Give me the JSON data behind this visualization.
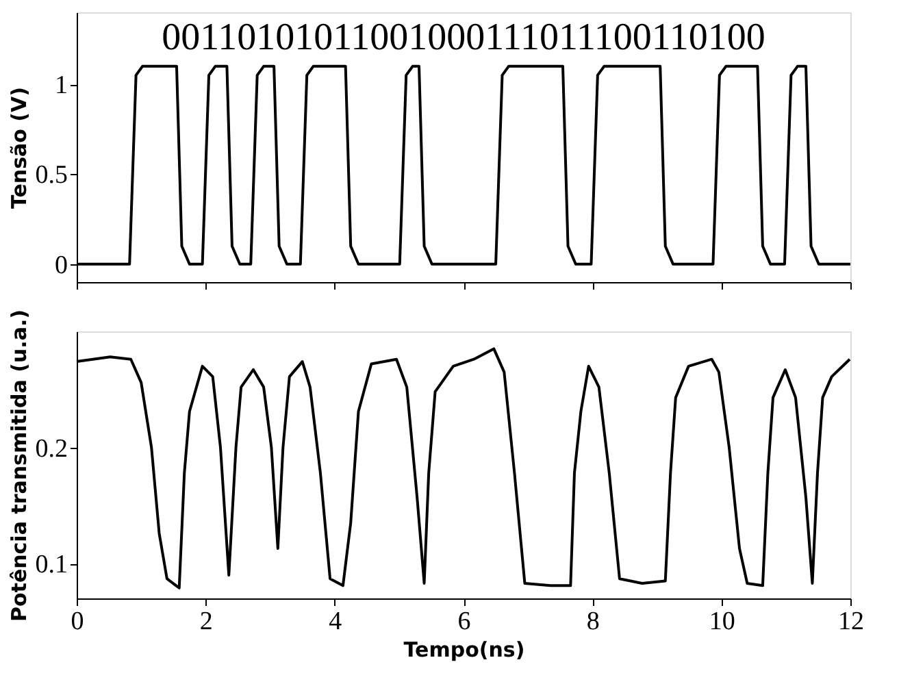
{
  "chart_data": [
    {
      "type": "line",
      "ylabel": "Tensão (V)",
      "annotations": [
        "00110101011001000111011100110100"
      ],
      "xlim": [
        0,
        12
      ],
      "xticks": [
        0,
        2,
        4,
        6,
        8,
        10,
        12
      ],
      "ylim": [
        -0.1,
        1.4
      ],
      "yticks": [
        0,
        0.5,
        1
      ],
      "tick_labels": "y",
      "grid": false,
      "series": [
        {
          "color": "#000000",
          "x": [
            0,
            0.82,
            0.92,
            1.02,
            1.55,
            1.63,
            1.75,
            1.95,
            2.05,
            2.15,
            2.33,
            2.41,
            2.53,
            2.7,
            2.8,
            2.9,
            3.06,
            3.14,
            3.26,
            3.47,
            3.57,
            3.67,
            4.17,
            4.25,
            4.37,
            5.01,
            5.11,
            5.21,
            5.31,
            5.39,
            5.51,
            6.5,
            6.6,
            6.7,
            7.54,
            7.62,
            7.74,
            7.98,
            8.08,
            8.18,
            9.05,
            9.13,
            9.25,
            9.87,
            9.97,
            10.07,
            10.56,
            10.64,
            10.76,
            10.98,
            11.08,
            11.18,
            11.31,
            11.39,
            11.51,
            12
          ],
          "values": [
            0,
            0,
            1.05,
            1.1,
            1.1,
            0.1,
            0,
            0,
            1.05,
            1.1,
            1.1,
            0.1,
            0,
            0,
            1.05,
            1.1,
            1.1,
            0.1,
            0,
            0,
            1.05,
            1.1,
            1.1,
            0.1,
            0,
            0,
            1.05,
            1.1,
            1.1,
            0.1,
            0,
            0,
            1.05,
            1.1,
            1.1,
            0.1,
            0,
            0,
            1.05,
            1.1,
            1.1,
            0.1,
            0,
            0,
            1.05,
            1.1,
            1.1,
            0.1,
            0,
            0,
            1.05,
            1.1,
            1.1,
            0.1,
            0,
            0
          ]
        }
      ]
    },
    {
      "type": "line",
      "xlabel": "Tempo(ns)",
      "ylabel": "Potência transmitida (u.a.)",
      "xlim": [
        0,
        12
      ],
      "xticks": [
        0,
        2,
        4,
        6,
        8,
        10,
        12
      ],
      "ylim": [
        0.07,
        0.3
      ],
      "yticks": [
        0.1,
        0.2
      ],
      "grid": false,
      "series": [
        {
          "color": "#000000",
          "x": [
            0,
            0.52,
            0.84,
            1.0,
            1.16,
            1.28,
            1.4,
            1.59,
            1.67,
            1.75,
            1.95,
            2.11,
            2.23,
            2.36,
            2.47,
            2.55,
            2.74,
            2.9,
            3.02,
            3.12,
            3.2,
            3.3,
            3.5,
            3.62,
            3.78,
            3.93,
            4.13,
            4.25,
            4.37,
            4.57,
            4.96,
            5.12,
            5.28,
            5.39,
            5.46,
            5.56,
            5.84,
            6.16,
            6.47,
            6.63,
            6.79,
            6.95,
            7.35,
            7.66,
            7.72,
            7.82,
            7.94,
            8.1,
            8.26,
            8.42,
            8.77,
            9.13,
            9.21,
            9.29,
            9.49,
            9.85,
            9.96,
            10.12,
            10.28,
            10.4,
            10.64,
            10.72,
            10.8,
            10.99,
            11.15,
            11.31,
            11.41,
            11.49,
            11.57,
            11.71,
            11.99
          ],
          "values": [
            0.274,
            0.278,
            0.276,
            0.256,
            0.2,
            0.126,
            0.087,
            0.079,
            0.178,
            0.231,
            0.27,
            0.261,
            0.2,
            0.09,
            0.2,
            0.252,
            0.267,
            0.252,
            0.2,
            0.113,
            0.2,
            0.261,
            0.274,
            0.252,
            0.178,
            0.087,
            0.081,
            0.135,
            0.231,
            0.272,
            0.276,
            0.252,
            0.157,
            0.083,
            0.178,
            0.248,
            0.27,
            0.276,
            0.285,
            0.265,
            0.178,
            0.083,
            0.081,
            0.081,
            0.178,
            0.231,
            0.27,
            0.252,
            0.178,
            0.087,
            0.083,
            0.085,
            0.178,
            0.243,
            0.27,
            0.276,
            0.265,
            0.2,
            0.113,
            0.083,
            0.081,
            0.178,
            0.243,
            0.267,
            0.243,
            0.157,
            0.083,
            0.178,
            0.243,
            0.261,
            0.276
          ]
        }
      ]
    }
  ]
}
